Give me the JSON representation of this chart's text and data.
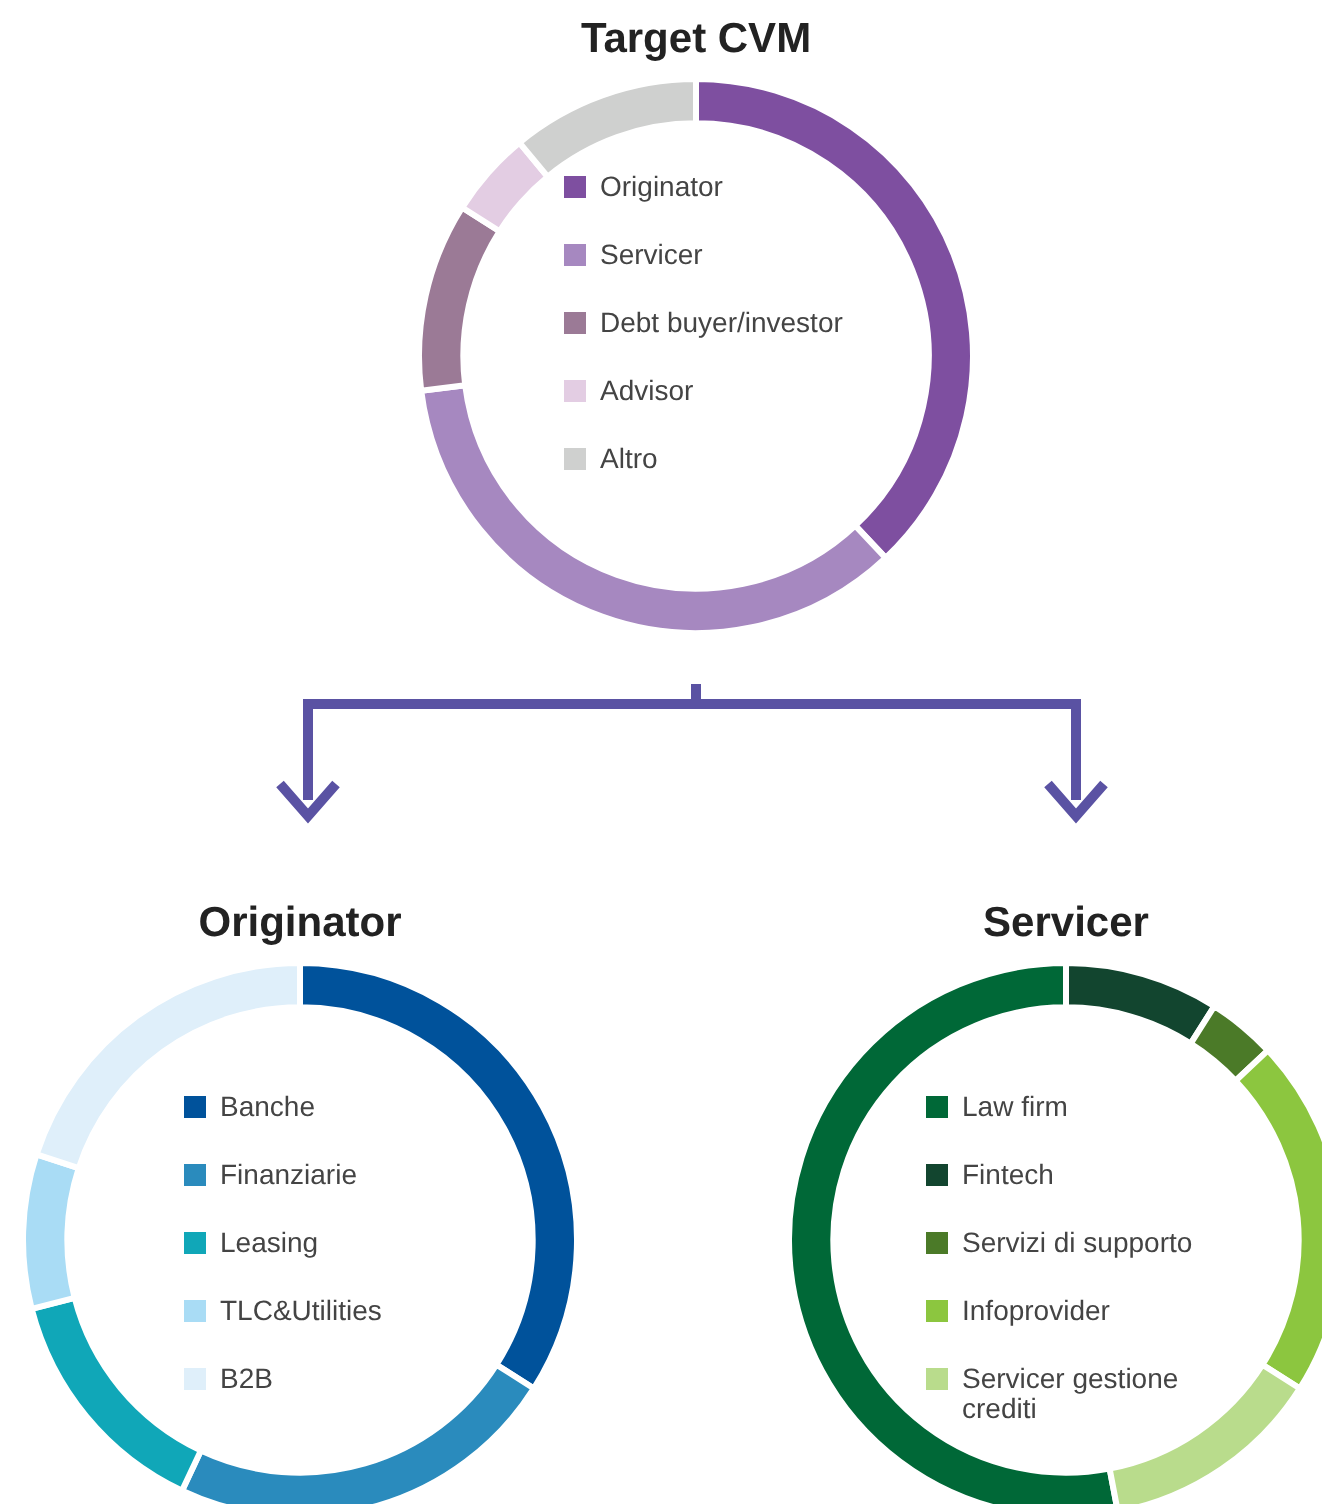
{
  "chart_data": [
    {
      "type": "donut",
      "title": "Target CVM",
      "categories": [
        "Originator",
        "Servicer",
        "Debt buyer/investor",
        "Advisor",
        "Altro"
      ],
      "values": [
        38,
        35,
        11,
        5,
        11
      ],
      "colors": [
        "#7e4fa0",
        "#a688c0",
        "#9b7a96",
        "#e3cde3",
        "#cfd0cf"
      ],
      "legend": "center"
    },
    {
      "type": "donut",
      "title": "Originator",
      "categories": [
        "Banche",
        "Finanziarie",
        "Leasing",
        "TLC&Utilities",
        "B2B"
      ],
      "values": [
        34,
        23,
        14,
        9,
        20
      ],
      "colors": [
        "#00529b",
        "#2a8bbd",
        "#10a7b8",
        "#a9dcf5",
        "#dfeffa"
      ],
      "legend": "center"
    },
    {
      "type": "donut",
      "title": "Servicer",
      "categories": [
        "Law firm",
        "Fintech",
        "Servizi di supporto",
        "Infoprovider",
        "Servicer gestione crediti"
      ],
      "values": [
        53,
        9,
        4,
        21,
        13
      ],
      "colors": [
        "#006837",
        "#12452f",
        "#4b7a28",
        "#8cc63f",
        "#b9dc8c"
      ],
      "legend": "center"
    }
  ]
}
